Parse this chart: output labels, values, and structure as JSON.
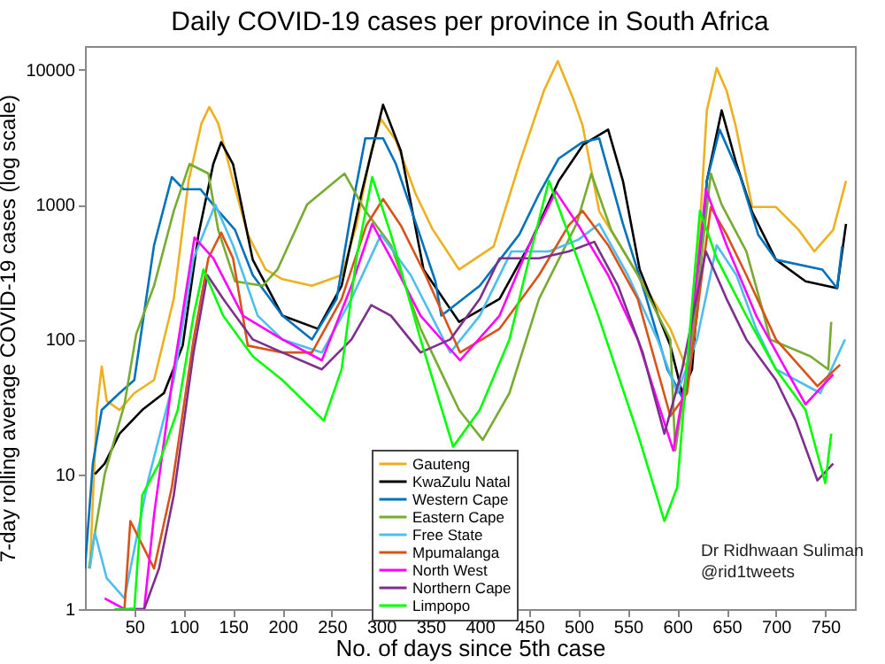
{
  "chart_data": {
    "type": "line",
    "title": "Daily COVID-19 cases per province in South Africa",
    "xlabel": "No. of days since 5th case",
    "ylabel": "7-day rolling average COVID-19 cases (log scale)",
    "log": "y",
    "xlim": [
      0,
      780
    ],
    "ylim": [
      1,
      15000
    ],
    "xticks": [
      50,
      100,
      150,
      200,
      250,
      300,
      350,
      400,
      450,
      500,
      550,
      600,
      650,
      700,
      750
    ],
    "yticks": [
      1,
      10,
      100,
      1000,
      10000
    ],
    "legend": "bottom",
    "grid": false,
    "annotations": [
      "Dr Ridhwaan Suliman",
      "@rid1tweets"
    ],
    "series": [
      {
        "name": "Gauteng",
        "color": "#edb120",
        "x": [
          5,
          12,
          17,
          22,
          35,
          50,
          70,
          90,
          105,
          118,
          126,
          135,
          150,
          165,
          183,
          200,
          230,
          260,
          275,
          290,
          300,
          315,
          335,
          352,
          379,
          414,
          440,
          465,
          479,
          495,
          504,
          521,
          557,
          593,
          610,
          620,
          630,
          640,
          650,
          659,
          676,
          700,
          723,
          739,
          758,
          771
        ],
        "values": [
          2,
          30,
          63,
          35,
          30,
          40,
          50,
          200,
          1500,
          4000,
          5300,
          4000,
          1500,
          600,
          330,
          280,
          250,
          300,
          700,
          2500,
          4300,
          3000,
          1200,
          660,
          330,
          490,
          2000,
          7000,
          11600,
          6000,
          3900,
          890,
          330,
          120,
          60,
          300,
          5000,
          10300,
          7000,
          3900,
          960,
          960,
          650,
          450,
          650,
          1500
        ]
      },
      {
        "name": "KwaZulu Natal",
        "color": "#000000",
        "x": [
          10,
          20,
          35,
          58,
          80,
          99,
          115,
          130,
          138,
          150,
          170,
          200,
          236,
          260,
          280,
          302,
          320,
          343,
          379,
          420,
          450,
          480,
          505,
          530,
          545,
          562,
          593,
          605,
          615,
          630,
          645,
          660,
          676,
          700,
          730,
          762,
          771
        ],
        "values": [
          10,
          12,
          20,
          30,
          40,
          90,
          600,
          2000,
          2900,
          2000,
          390,
          150,
          120,
          250,
          1200,
          5500,
          2500,
          330,
          135,
          200,
          500,
          1500,
          2800,
          3600,
          1500,
          330,
          90,
          40,
          60,
          1500,
          5000,
          2000,
          880,
          390,
          270,
          240,
          720
        ]
      },
      {
        "name": "Western Cape",
        "color": "#0072bd",
        "x": [
          0,
          8,
          17,
          35,
          50,
          70,
          88,
          100,
          117,
          135,
          152,
          170,
          200,
          230,
          255,
          270,
          284,
          302,
          315,
          331,
          355,
          361,
          400,
          440,
          460,
          480,
          504,
          521,
          545,
          569,
          590,
          607,
          620,
          630,
          643,
          664,
          682,
          700,
          747,
          762,
          767
        ],
        "values": [
          2,
          12,
          30,
          40,
          50,
          500,
          1600,
          1300,
          1300,
          900,
          650,
          300,
          150,
          100,
          200,
          900,
          3100,
          3100,
          2000,
          900,
          270,
          150,
          250,
          600,
          1200,
          2200,
          2900,
          3100,
          720,
          200,
          60,
          35,
          150,
          1500,
          3600,
          1600,
          600,
          390,
          330,
          240,
          490
        ]
      },
      {
        "name": "Eastern Cape",
        "color": "#77ac30",
        "x": [
          4,
          20,
          40,
          52,
          70,
          90,
          106,
          125,
          135,
          152,
          180,
          195,
          225,
          263,
          284,
          310,
          340,
          379,
          403,
          430,
          460,
          498,
          513,
          533,
          560,
          593,
          598,
          615,
          634,
          645,
          670,
          687,
          694,
          735,
          753,
          756
        ],
        "values": [
          2,
          10,
          33,
          110,
          250,
          900,
          2000,
          1700,
          650,
          270,
          250,
          330,
          1000,
          1700,
          900,
          500,
          120,
          30,
          18,
          40,
          200,
          720,
          1700,
          650,
          300,
          100,
          15,
          100,
          1700,
          1000,
          450,
          160,
          100,
          75,
          60,
          135
        ]
      },
      {
        "name": "Free State",
        "color": "#4dbeee",
        "x": [
          5,
          10,
          22,
          40,
          64,
          90,
          110,
          132,
          150,
          175,
          200,
          240,
          270,
          300,
          330,
          370,
          400,
          432,
          470,
          500,
          521,
          550,
          580,
          600,
          620,
          640,
          660,
          680,
          700,
          745,
          770
        ],
        "values": [
          2,
          3.7,
          1.7,
          1.2,
          9,
          50,
          400,
          1000,
          500,
          150,
          100,
          80,
          200,
          600,
          300,
          80,
          150,
          450,
          450,
          550,
          720,
          300,
          100,
          40,
          100,
          500,
          300,
          120,
          60,
          40,
          100
        ]
      },
      {
        "name": "Mpumalanga",
        "color": "#d95319",
        "x": [
          40,
          46,
          58,
          70,
          88,
          110,
          125,
          138,
          150,
          165,
          200,
          230,
          260,
          285,
          302,
          320,
          345,
          380,
          420,
          460,
          490,
          504,
          530,
          560,
          593,
          610,
          625,
          634,
          650,
          670,
          700,
          742,
          765
        ],
        "values": [
          1,
          4.5,
          3,
          2,
          8,
          100,
          400,
          620,
          400,
          90,
          80,
          80,
          200,
          700,
          1100,
          700,
          300,
          80,
          120,
          300,
          700,
          900,
          500,
          200,
          27,
          40,
          300,
          960,
          600,
          300,
          100,
          45,
          65
        ]
      },
      {
        "name": "North West",
        "color": "#ff00ff",
        "x": [
          20,
          40,
          60,
          70,
          90,
          111,
          130,
          160,
          200,
          240,
          270,
          291,
          310,
          340,
          380,
          420,
          450,
          477,
          500,
          530,
          560,
          596,
          610,
          629,
          650,
          680,
          710,
          730,
          758
        ],
        "values": [
          1.2,
          1,
          1,
          5,
          60,
          570,
          400,
          150,
          100,
          70,
          250,
          720,
          400,
          150,
          70,
          150,
          500,
          1250,
          700,
          300,
          100,
          15,
          60,
          1300,
          500,
          150,
          60,
          33,
          55
        ]
      },
      {
        "name": "Northern Cape",
        "color": "#7e2f8e",
        "x": [
          45,
          60,
          75,
          90,
          110,
          124,
          140,
          170,
          200,
          240,
          270,
          290,
          310,
          340,
          370,
          400,
          420,
          460,
          490,
          516,
          540,
          565,
          587,
          605,
          629,
          650,
          670,
          700,
          720,
          742,
          758
        ],
        "values": [
          1,
          1,
          2,
          7,
          80,
          300,
          200,
          100,
          80,
          60,
          100,
          180,
          150,
          80,
          100,
          200,
          400,
          400,
          450,
          530,
          250,
          80,
          20,
          60,
          450,
          200,
          100,
          50,
          25,
          9,
          12
        ]
      },
      {
        "name": "Limpopo",
        "color": "#00ff00",
        "x": [
          30,
          50,
          58,
          75,
          94,
          110,
          120,
          140,
          170,
          200,
          242,
          260,
          275,
          291,
          310,
          340,
          373,
          400,
          430,
          450,
          470,
          490,
          520,
          560,
          587,
          600,
          612,
          623,
          640,
          670,
          700,
          730,
          750,
          756
        ],
        "values": [
          1,
          1,
          7,
          12,
          30,
          150,
          330,
          150,
          75,
          50,
          25,
          60,
          400,
          1600,
          600,
          100,
          16,
          30,
          100,
          400,
          1500,
          600,
          150,
          20,
          4.5,
          8,
          100,
          900,
          400,
          150,
          60,
          30,
          8.6,
          20
        ]
      }
    ]
  }
}
